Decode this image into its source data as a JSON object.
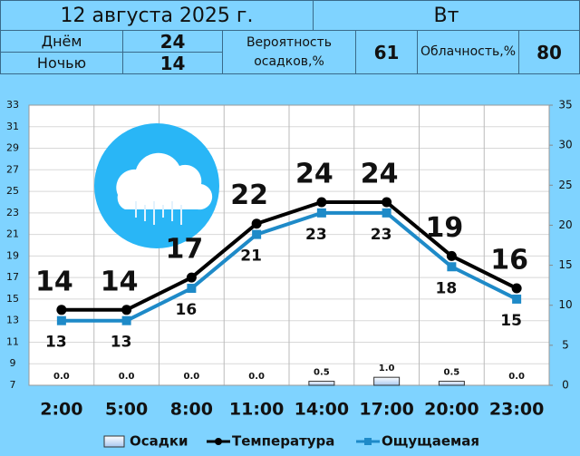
{
  "header": {
    "date": "12 августа 2025 г.",
    "weekday": "Вт",
    "day_label": "Днём",
    "day_temp": 24,
    "night_label": "Ночью",
    "night_temp": 14,
    "precip_prob_label": "Вероятность осадков,%",
    "precip_prob": 61,
    "cloud_label": "Облачность,%",
    "cloud": 80
  },
  "chart_data": {
    "type": "line",
    "categories": [
      "2:00",
      "5:00",
      "8:00",
      "11:00",
      "14:00",
      "17:00",
      "20:00",
      "23:00"
    ],
    "series": [
      {
        "name": "Осадки",
        "type": "bar",
        "axis": "y2",
        "color": "#a8c8f0",
        "values": [
          0,
          0,
          0,
          0,
          0.5,
          1.0,
          0.5,
          0
        ],
        "value_labels": [
          "0.0",
          "0.0",
          "0.0",
          "0.0",
          "0.5",
          "1.0",
          "0.5",
          "0.0"
        ]
      },
      {
        "name": "Температура",
        "color": "#000000",
        "values": [
          14,
          14,
          17,
          22,
          24,
          24,
          19,
          16
        ]
      },
      {
        "name": "Ощущаемая",
        "color": "#1e8ac8",
        "values": [
          13,
          13,
          16,
          21,
          23,
          23,
          18,
          15
        ]
      }
    ],
    "ylim": [
      7,
      33
    ],
    "yticks": [
      7,
      9,
      11,
      13,
      15,
      17,
      19,
      21,
      23,
      25,
      27,
      29,
      31,
      33
    ],
    "y2lim": [
      0,
      35
    ],
    "y2ticks": [
      0,
      5,
      10,
      15,
      20,
      25,
      30,
      35
    ],
    "grid": true,
    "legend": "bottom"
  }
}
